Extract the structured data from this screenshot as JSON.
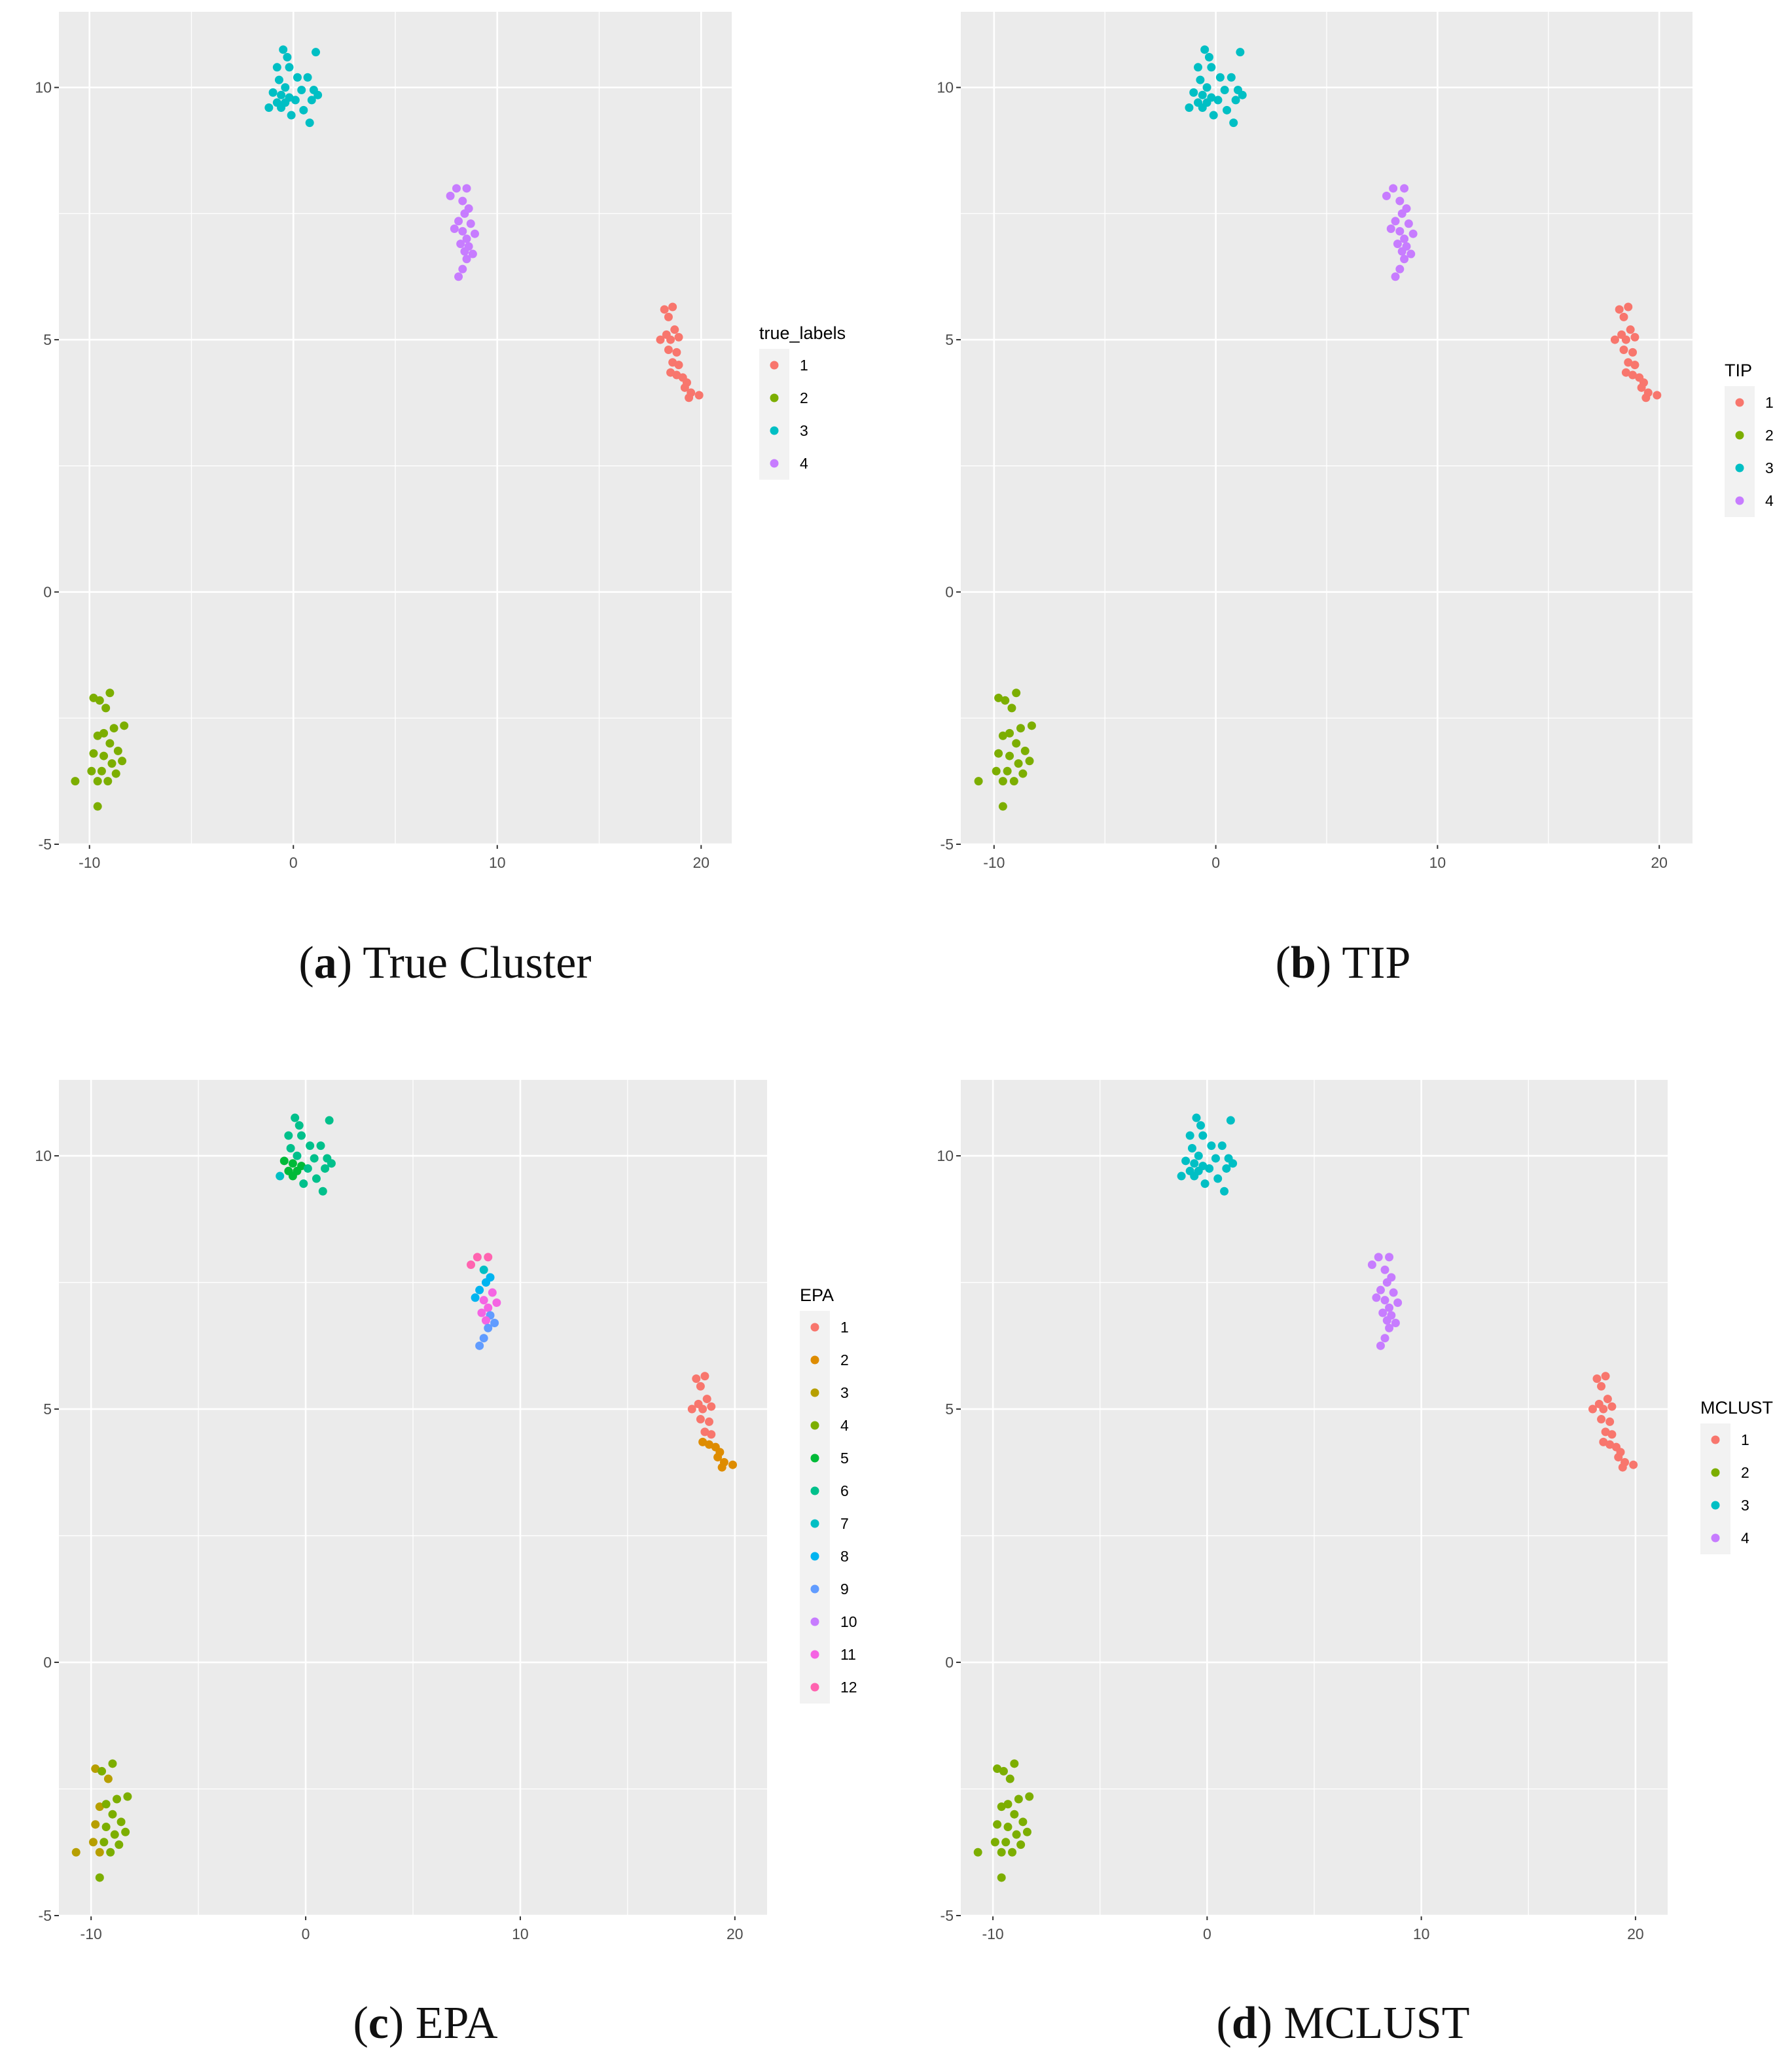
{
  "palettes": {
    "k4": [
      "#F8766D",
      "#7CAE00",
      "#00BFC4",
      "#C77CFF"
    ],
    "k12": [
      "#F8766D",
      "#DE8C00",
      "#B79F00",
      "#7CAE00",
      "#00BA38",
      "#00C08B",
      "#00BFC4",
      "#00B4F0",
      "#619CFF",
      "#C77CFF",
      "#F564E3",
      "#FF64B0"
    ]
  },
  "points": [
    {
      "x": 18.6,
      "y": 5.65
    },
    {
      "x": 18.2,
      "y": 5.6
    },
    {
      "x": 18.4,
      "y": 5.45
    },
    {
      "x": 18.3,
      "y": 5.1
    },
    {
      "x": 18.7,
      "y": 5.2
    },
    {
      "x": 18.0,
      "y": 5.0
    },
    {
      "x": 18.5,
      "y": 5.0
    },
    {
      "x": 18.9,
      "y": 5.05
    },
    {
      "x": 18.4,
      "y": 4.8
    },
    {
      "x": 18.8,
      "y": 4.75
    },
    {
      "x": 18.6,
      "y": 4.55
    },
    {
      "x": 18.9,
      "y": 4.5
    },
    {
      "x": 18.5,
      "y": 4.35
    },
    {
      "x": 18.8,
      "y": 4.3
    },
    {
      "x": 19.1,
      "y": 4.25
    },
    {
      "x": 19.3,
      "y": 4.15
    },
    {
      "x": 19.2,
      "y": 4.05
    },
    {
      "x": 19.5,
      "y": 3.95
    },
    {
      "x": 19.9,
      "y": 3.9
    },
    {
      "x": 19.4,
      "y": 3.85
    },
    {
      "x": -10.7,
      "y": -3.75
    },
    {
      "x": -9.8,
      "y": -2.1
    },
    {
      "x": -9.5,
      "y": -2.15
    },
    {
      "x": -9.0,
      "y": -2.0
    },
    {
      "x": -9.2,
      "y": -2.3
    },
    {
      "x": -9.6,
      "y": -2.85
    },
    {
      "x": -9.3,
      "y": -2.8
    },
    {
      "x": -8.8,
      "y": -2.7
    },
    {
      "x": -8.3,
      "y": -2.65
    },
    {
      "x": -9.0,
      "y": -3.0
    },
    {
      "x": -8.6,
      "y": -3.15
    },
    {
      "x": -9.8,
      "y": -3.2
    },
    {
      "x": -9.3,
      "y": -3.25
    },
    {
      "x": -8.4,
      "y": -3.35
    },
    {
      "x": -8.9,
      "y": -3.4
    },
    {
      "x": -9.9,
      "y": -3.55
    },
    {
      "x": -9.4,
      "y": -3.55
    },
    {
      "x": -8.7,
      "y": -3.6
    },
    {
      "x": -9.6,
      "y": -3.75
    },
    {
      "x": -9.1,
      "y": -3.75
    },
    {
      "x": -9.6,
      "y": -4.25
    },
    {
      "x": -0.5,
      "y": 10.75
    },
    {
      "x": -0.3,
      "y": 10.6
    },
    {
      "x": 1.1,
      "y": 10.7
    },
    {
      "x": -0.8,
      "y": 10.4
    },
    {
      "x": -0.2,
      "y": 10.4
    },
    {
      "x": 0.7,
      "y": 10.2
    },
    {
      "x": -0.7,
      "y": 10.15
    },
    {
      "x": 0.2,
      "y": 10.2
    },
    {
      "x": -0.4,
      "y": 10.0
    },
    {
      "x": 0.4,
      "y": 9.95
    },
    {
      "x": 1.0,
      "y": 9.95
    },
    {
      "x": -1.0,
      "y": 9.9
    },
    {
      "x": -0.6,
      "y": 9.85
    },
    {
      "x": -0.2,
      "y": 9.8
    },
    {
      "x": 1.2,
      "y": 9.85
    },
    {
      "x": -0.8,
      "y": 9.7
    },
    {
      "x": -0.4,
      "y": 9.7
    },
    {
      "x": 0.1,
      "y": 9.75
    },
    {
      "x": 0.9,
      "y": 9.75
    },
    {
      "x": -1.2,
      "y": 9.6
    },
    {
      "x": -0.6,
      "y": 9.6
    },
    {
      "x": 0.5,
      "y": 9.55
    },
    {
      "x": -0.1,
      "y": 9.45
    },
    {
      "x": 0.8,
      "y": 9.3
    },
    {
      "x": 8.0,
      "y": 8.0
    },
    {
      "x": 8.5,
      "y": 8.0
    },
    {
      "x": 7.7,
      "y": 7.85
    },
    {
      "x": 8.3,
      "y": 7.75
    },
    {
      "x": 8.6,
      "y": 7.6
    },
    {
      "x": 8.4,
      "y": 7.5
    },
    {
      "x": 8.1,
      "y": 7.35
    },
    {
      "x": 8.7,
      "y": 7.3
    },
    {
      "x": 7.9,
      "y": 7.2
    },
    {
      "x": 8.3,
      "y": 7.15
    },
    {
      "x": 8.9,
      "y": 7.1
    },
    {
      "x": 8.5,
      "y": 7.0
    },
    {
      "x": 8.2,
      "y": 6.9
    },
    {
      "x": 8.6,
      "y": 6.85
    },
    {
      "x": 8.4,
      "y": 6.75
    },
    {
      "x": 8.8,
      "y": 6.7
    },
    {
      "x": 8.5,
      "y": 6.6
    },
    {
      "x": 8.3,
      "y": 6.4
    },
    {
      "x": 8.1,
      "y": 6.25
    }
  ],
  "chart_data": [
    {
      "type": "scatter",
      "title": "",
      "caption_letter": "a",
      "caption_text": "True Cluster",
      "xlabel": "",
      "ylabel": "",
      "xlim": [
        -11.5,
        21.5
      ],
      "ylim": [
        -5,
        11.5
      ],
      "xticks": [
        -10,
        0,
        10,
        20
      ],
      "yticks": [
        -5,
        0,
        5,
        10
      ],
      "xtick_labels": [
        "-10",
        "0",
        "10",
        "20"
      ],
      "ytick_labels": [
        "-5",
        "0",
        "5",
        "10"
      ],
      "legend_title": "true_labels",
      "legend_labels": [
        "1",
        "2",
        "3",
        "4"
      ],
      "palette": "k4",
      "labels": [
        1,
        1,
        1,
        1,
        1,
        1,
        1,
        1,
        1,
        1,
        1,
        1,
        1,
        1,
        1,
        1,
        1,
        1,
        1,
        1,
        2,
        2,
        2,
        2,
        2,
        2,
        2,
        2,
        2,
        2,
        2,
        2,
        2,
        2,
        2,
        2,
        2,
        2,
        2,
        2,
        2,
        3,
        3,
        3,
        3,
        3,
        3,
        3,
        3,
        3,
        3,
        3,
        3,
        3,
        3,
        3,
        3,
        3,
        3,
        3,
        3,
        3,
        3,
        3,
        3,
        4,
        4,
        4,
        4,
        4,
        4,
        4,
        4,
        4,
        4,
        4,
        4,
        4,
        4,
        4,
        4,
        4,
        4,
        4
      ]
    },
    {
      "type": "scatter",
      "title": "",
      "caption_letter": "b",
      "caption_text": "TIP",
      "xlabel": "",
      "ylabel": "",
      "xlim": [
        -11.5,
        21.5
      ],
      "ylim": [
        -5,
        11.5
      ],
      "xticks": [
        -10,
        0,
        10,
        20
      ],
      "yticks": [
        -5,
        0,
        5,
        10
      ],
      "xtick_labels": [
        "-10",
        "0",
        "10",
        "20"
      ],
      "ytick_labels": [
        "-5",
        "0",
        "5",
        "10"
      ],
      "legend_title": "TIP",
      "legend_labels": [
        "1",
        "2",
        "3",
        "4"
      ],
      "palette": "k4",
      "labels": [
        1,
        1,
        1,
        1,
        1,
        1,
        1,
        1,
        1,
        1,
        1,
        1,
        1,
        1,
        1,
        1,
        1,
        1,
        1,
        1,
        2,
        2,
        2,
        2,
        2,
        2,
        2,
        2,
        2,
        2,
        2,
        2,
        2,
        2,
        2,
        2,
        2,
        2,
        2,
        2,
        2,
        3,
        3,
        3,
        3,
        3,
        3,
        3,
        3,
        3,
        3,
        3,
        3,
        3,
        3,
        3,
        3,
        3,
        3,
        3,
        3,
        3,
        3,
        3,
        3,
        4,
        4,
        4,
        4,
        4,
        4,
        4,
        4,
        4,
        4,
        4,
        4,
        4,
        4,
        4,
        4,
        4,
        4,
        4
      ]
    },
    {
      "type": "scatter",
      "title": "",
      "caption_letter": "c",
      "caption_text": "EPA",
      "xlabel": "",
      "ylabel": "",
      "xlim": [
        -11.5,
        21.5
      ],
      "ylim": [
        -5,
        11.5
      ],
      "xticks": [
        -10,
        0,
        10,
        20
      ],
      "yticks": [
        -5,
        0,
        5,
        10
      ],
      "xtick_labels": [
        "-10",
        "0",
        "10",
        "20"
      ],
      "ytick_labels": [
        "-5",
        "0",
        "5",
        "10"
      ],
      "legend_title": "EPA",
      "legend_labels": [
        "1",
        "2",
        "3",
        "4",
        "5",
        "6",
        "7",
        "8",
        "9",
        "10",
        "11",
        "12"
      ],
      "palette": "k12",
      "labels": [
        1,
        1,
        1,
        1,
        1,
        1,
        1,
        1,
        1,
        1,
        1,
        1,
        2,
        2,
        2,
        2,
        2,
        2,
        2,
        2,
        3,
        3,
        4,
        4,
        3,
        3,
        4,
        4,
        4,
        4,
        4,
        3,
        4,
        4,
        4,
        3,
        4,
        4,
        3,
        4,
        4,
        6,
        6,
        6,
        6,
        6,
        6,
        6,
        6,
        6,
        6,
        6,
        5,
        5,
        5,
        6,
        5,
        5,
        6,
        6,
        7,
        5,
        6,
        6,
        6,
        12,
        12,
        12,
        7,
        8,
        8,
        8,
        11,
        8,
        11,
        11,
        11,
        11,
        9,
        11,
        9,
        9,
        9,
        9
      ]
    },
    {
      "type": "scatter",
      "title": "",
      "caption_letter": "d",
      "caption_text": "MCLUST",
      "xlabel": "",
      "ylabel": "",
      "xlim": [
        -11.5,
        21.5
      ],
      "ylim": [
        -5,
        11.5
      ],
      "xticks": [
        -10,
        0,
        10,
        20
      ],
      "yticks": [
        -5,
        0,
        5,
        10
      ],
      "xtick_labels": [
        "-10",
        "0",
        "10",
        "20"
      ],
      "ytick_labels": [
        "-5",
        "0",
        "5",
        "10"
      ],
      "legend_title": "MCLUST",
      "legend_labels": [
        "1",
        "2",
        "3",
        "4"
      ],
      "palette": "k4",
      "labels": [
        1,
        1,
        1,
        1,
        1,
        1,
        1,
        1,
        1,
        1,
        1,
        1,
        1,
        1,
        1,
        1,
        1,
        1,
        1,
        1,
        2,
        2,
        2,
        2,
        2,
        2,
        2,
        2,
        2,
        2,
        2,
        2,
        2,
        2,
        2,
        2,
        2,
        2,
        2,
        2,
        2,
        3,
        3,
        3,
        3,
        3,
        3,
        3,
        3,
        3,
        3,
        3,
        3,
        3,
        3,
        3,
        3,
        3,
        3,
        3,
        3,
        3,
        3,
        3,
        3,
        4,
        4,
        4,
        4,
        4,
        4,
        4,
        4,
        4,
        4,
        4,
        4,
        4,
        4,
        4,
        4,
        4,
        4,
        4
      ]
    }
  ]
}
